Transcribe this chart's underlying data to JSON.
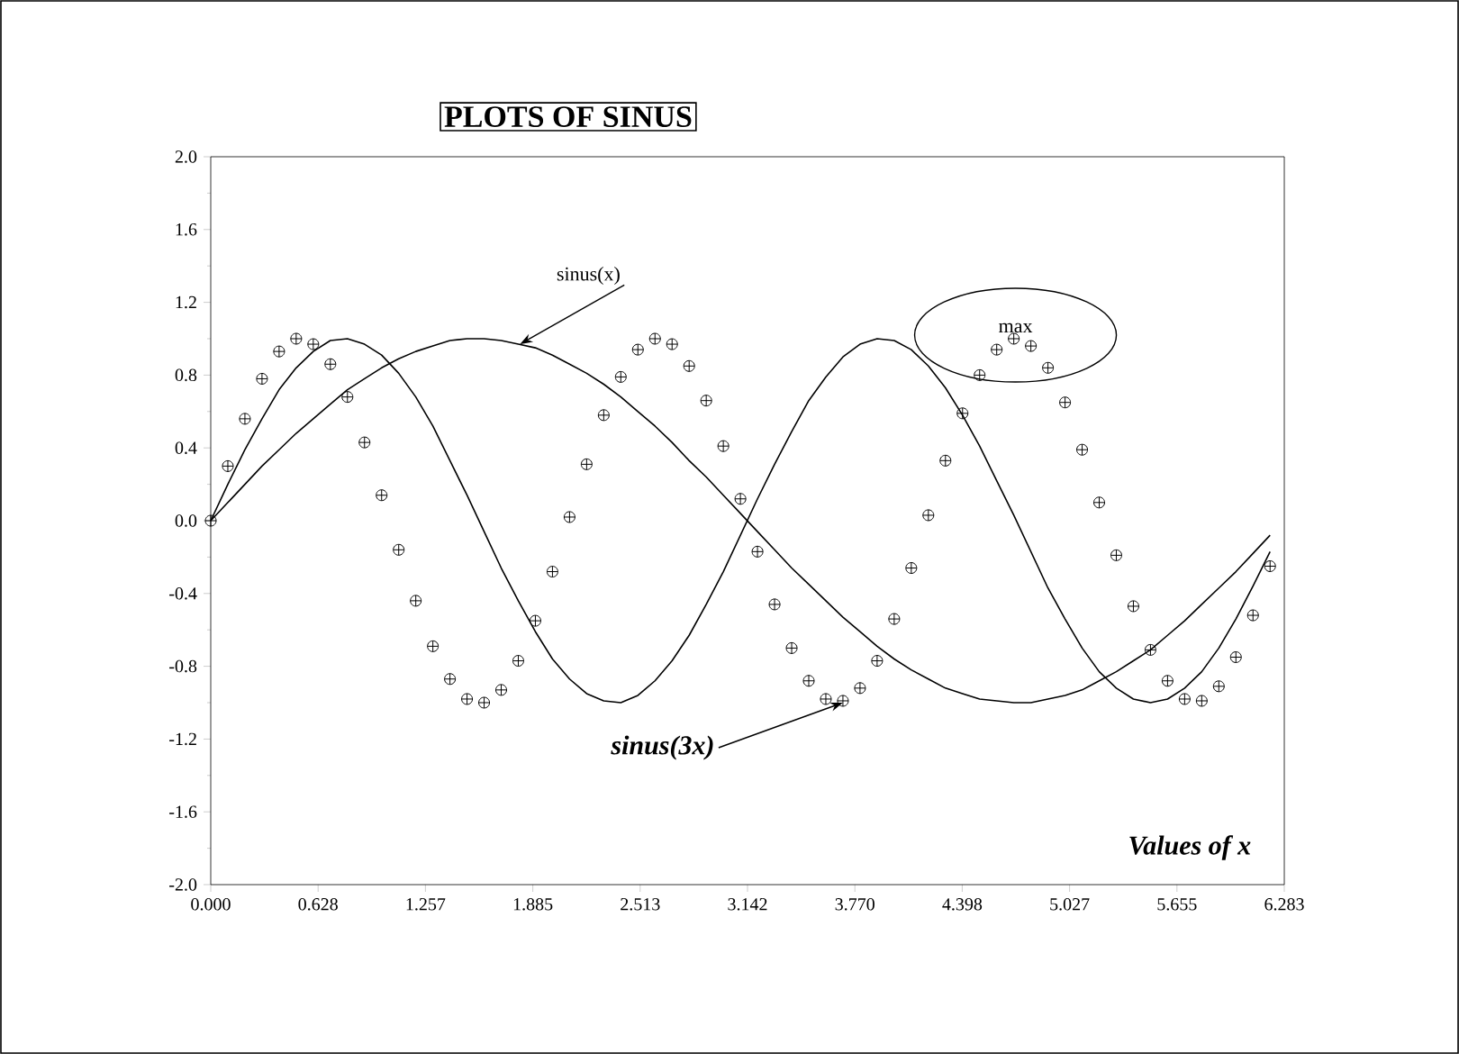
{
  "chart_data": {
    "type": "line",
    "title": "PLOTS OF SINUS",
    "xlabel": "Values of x",
    "x": [
      0,
      0.1,
      0.2,
      0.3,
      0.4,
      0.5,
      0.6,
      0.7,
      0.8,
      0.9,
      1.0,
      1.1,
      1.2,
      1.3,
      1.4,
      1.5,
      1.6,
      1.7,
      1.8,
      1.9,
      2.0,
      2.1,
      2.2,
      2.3,
      2.4,
      2.5,
      2.6,
      2.7,
      2.8,
      2.9,
      3.0,
      3.1,
      3.2,
      3.3,
      3.4,
      3.5,
      3.6,
      3.7,
      3.8,
      3.9,
      4.0,
      4.1,
      4.2,
      4.3,
      4.4,
      4.5,
      4.6,
      4.7,
      4.8,
      4.9,
      5.0,
      5.1,
      5.2,
      5.3,
      5.4,
      5.5,
      5.6,
      5.7,
      5.8,
      5.9,
      6.0,
      6.1,
      6.2
    ],
    "series": [
      {
        "color": "#000000",
        "values": [
          0,
          0.1,
          0.2,
          0.3,
          0.39,
          0.48,
          0.56,
          0.64,
          0.72,
          0.78,
          0.84,
          0.89,
          0.93,
          0.96,
          0.99,
          1.0,
          1.0,
          0.99,
          0.97,
          0.95,
          0.91,
          0.86,
          0.81,
          0.75,
          0.68,
          0.6,
          0.52,
          0.43,
          0.33,
          0.24,
          0.14,
          0.04,
          -0.06,
          -0.16,
          -0.26,
          -0.35,
          -0.44,
          -0.53,
          -0.61,
          -0.69,
          -0.76,
          -0.82,
          -0.87,
          -0.92,
          -0.95,
          -0.98,
          -0.99,
          -1.0,
          -1.0,
          -0.98,
          -0.96,
          -0.93,
          -0.88,
          -0.83,
          -0.77,
          -0.71,
          -0.63,
          -0.55,
          -0.46,
          -0.37,
          -0.28,
          -0.18,
          -0.08
        ]
      },
      {
        "color": "#000000",
        "values": [
          0,
          0.2,
          0.39,
          0.56,
          0.72,
          0.84,
          0.93,
          0.99,
          1.0,
          0.97,
          0.91,
          0.81,
          0.68,
          0.52,
          0.33,
          0.14,
          -0.06,
          -0.26,
          -0.44,
          -0.61,
          -0.76,
          -0.87,
          -0.95,
          -0.99,
          -1.0,
          -0.96,
          -0.88,
          -0.77,
          -0.63,
          -0.46,
          -0.28,
          -0.08,
          0.12,
          0.31,
          0.49,
          0.66,
          0.79,
          0.9,
          0.97,
          1.0,
          0.99,
          0.94,
          0.85,
          0.73,
          0.58,
          0.41,
          0.22,
          0.03,
          -0.17,
          -0.37,
          -0.54,
          -0.7,
          -0.83,
          -0.92,
          -0.98,
          -1.0,
          -0.98,
          -0.92,
          -0.83,
          -0.7,
          -0.54,
          -0.36,
          -0.17
        ]
      },
      {
        "type": "scatter",
        "color": "#000000",
        "marker": "cross",
        "values": [
          0,
          0.3,
          0.56,
          0.78,
          0.93,
          1.0,
          0.97,
          0.86,
          0.68,
          0.43,
          0.14,
          -0.16,
          -0.44,
          -0.69,
          -0.87,
          -0.98,
          -1.0,
          -0.93,
          -0.77,
          -0.55,
          -0.28,
          0.02,
          0.31,
          0.58,
          0.79,
          0.94,
          1.0,
          0.97,
          0.85,
          0.66,
          0.41,
          0.12,
          -0.17,
          -0.46,
          -0.7,
          -0.88,
          -0.98,
          -0.99,
          -0.92,
          -0.77,
          -0.54,
          -0.26,
          0.03,
          0.33,
          0.59,
          0.8,
          0.94,
          1.0,
          0.96,
          0.84,
          0.65,
          0.39,
          0.1,
          -0.19,
          -0.47,
          -0.71,
          -0.88,
          -0.98,
          -0.99,
          -0.91,
          -0.75,
          -0.52,
          -0.25
        ]
      }
    ],
    "xlim": [
      0,
      6.2832
    ],
    "ylim": [
      -2,
      2
    ],
    "xticks": [
      {
        "value": 0,
        "label": "0.000"
      },
      {
        "value": 0.6283,
        "label": "0.628"
      },
      {
        "value": 1.2566,
        "label": "1.257"
      },
      {
        "value": 1.885,
        "label": "1.885"
      },
      {
        "value": 2.5133,
        "label": "2.513"
      },
      {
        "value": 3.1416,
        "label": "3.142"
      },
      {
        "value": 3.7699,
        "label": "3.770"
      },
      {
        "value": 4.3982,
        "label": "4.398"
      },
      {
        "value": 5.0265,
        "label": "5.027"
      },
      {
        "value": 5.6549,
        "label": "5.655"
      },
      {
        "value": 6.2832,
        "label": "6.283"
      }
    ],
    "yticks": [
      {
        "value": -2,
        "label": "-2.0"
      },
      {
        "value": -1.6,
        "label": "-1.6"
      },
      {
        "value": -1.2,
        "label": "-1.2"
      },
      {
        "value": -0.8,
        "label": "-0.8"
      },
      {
        "value": -0.4,
        "label": "-0.4"
      },
      {
        "value": 0,
        "label": "0.0"
      },
      {
        "value": 0.4,
        "label": "0.4"
      },
      {
        "value": 0.8,
        "label": "0.8"
      },
      {
        "value": 1.2,
        "label": "1.2"
      },
      {
        "value": 1.6,
        "label": "1.6"
      },
      {
        "value": 2,
        "label": "2.0"
      }
    ],
    "annotations": [
      {
        "text": "sinus(x)",
        "x": 1.81,
        "y": 0.97
      },
      {
        "text": "sinus(3x)",
        "x": 3.7,
        "y": -1.0
      },
      {
        "text": "max",
        "x": 4.71,
        "y": 1.0
      }
    ]
  }
}
